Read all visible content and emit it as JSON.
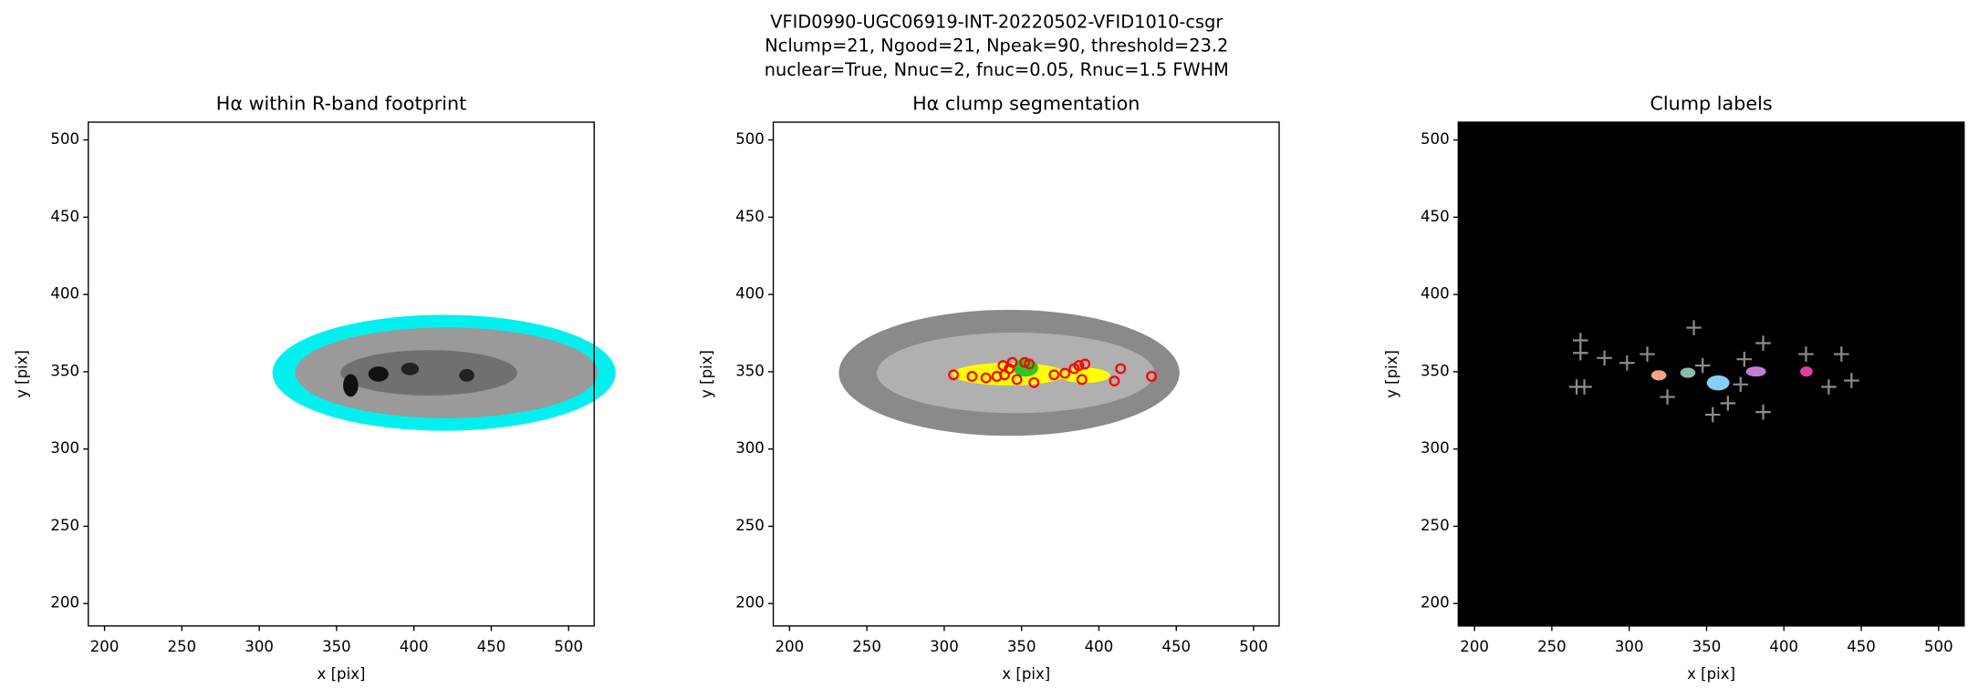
{
  "figure": {
    "title_lines": [
      "VFID0990-UGC06919-INT-20220502-VFID1010-csgr",
      "Nclump=21, Ngood=21, Npeak=90, threshold=23.2",
      "nuclear=True, Nnuc=2, fnuc=0.05, Rnuc=1.5 FWHM"
    ]
  },
  "chart_data": [
    {
      "type": "image",
      "title": "Hα within R-band footprint",
      "xlabel": "x [pix]",
      "ylabel": "y [pix]",
      "xlim": [
        189.5,
        516.5
      ],
      "ylim": [
        185.5,
        511.5
      ],
      "xticks": [
        200,
        250,
        300,
        350,
        400,
        450,
        500
      ],
      "yticks": [
        200,
        250,
        300,
        350,
        400,
        450,
        500
      ],
      "background": "#ffffff",
      "series": []
    },
    {
      "type": "scatter",
      "title": "Hα clump segmentation",
      "xlabel": "x [pix]",
      "ylabel": "y [pix]",
      "xlim": [
        189.5,
        516.5
      ],
      "ylim": [
        185.5,
        511.5
      ],
      "xticks": [
        200,
        250,
        300,
        350,
        400,
        450,
        500
      ],
      "yticks": [
        200,
        250,
        300,
        350,
        400,
        450,
        500
      ],
      "background": "#ffffff",
      "series": [
        {
          "color": "#ff0000",
          "marker": "circle",
          "x": [
            306,
            318,
            327,
            334,
            339,
            342,
            347,
            352,
            358,
            371,
            378,
            384,
            387,
            389,
            410,
            414,
            434,
            338,
            344,
            355,
            391
          ],
          "y": [
            348,
            347,
            346,
            347,
            348,
            352,
            345,
            356,
            343,
            348,
            349,
            352,
            354,
            345,
            344,
            352,
            347,
            354,
            356,
            355,
            355
          ]
        }
      ]
    },
    {
      "type": "scatter",
      "title": "Clump labels",
      "xlabel": "x [pix]",
      "ylabel": "y [pix]",
      "xlim": [
        189.5,
        516.5
      ],
      "ylim": [
        185.5,
        511.5
      ],
      "xticks": [
        200,
        250,
        300,
        350,
        400,
        450,
        500
      ],
      "yticks": [
        200,
        250,
        300,
        350,
        400,
        450,
        500
      ],
      "background": "#000000",
      "series": [
        {
          "color": "#8c8c8c",
          "marker": "plus",
          "x": [
            268.5,
            268.5,
            266,
            271,
            284,
            298.6,
            311.7,
            324.7,
            341.8,
            347.5,
            354,
            363.8,
            374.4,
            386.6,
            386.6,
            414.3,
            437.2,
            443.7,
            429,
            372
          ],
          "y": [
            370.3,
            362.2,
            340.2,
            340.2,
            358.9,
            355.7,
            361.4,
            333.7,
            378.5,
            354,
            322.2,
            329.6,
            358.1,
            368.5,
            323.9,
            361.4,
            361.4,
            344.3,
            340.2,
            341.8
          ]
        }
      ]
    }
  ]
}
